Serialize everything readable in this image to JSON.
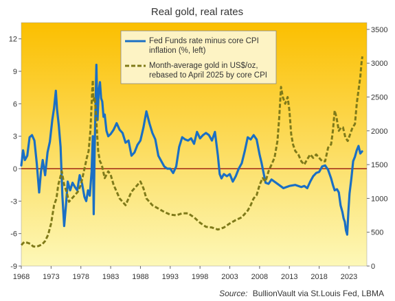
{
  "chart_data": {
    "type": "line",
    "title": "Real gold, real rates",
    "source_label": "Source:",
    "source_text": "BullionVault via St.Louis Fed, LBMA",
    "x_ticks": [
      "1968",
      "1973",
      "1978",
      "1983",
      "1988",
      "1993",
      "1998",
      "2003",
      "2008",
      "2013",
      "2018",
      "2023"
    ],
    "xlim": [
      1968,
      2026
    ],
    "y_left": {
      "ticks": [
        "12",
        "9",
        "6",
        "3",
        "0",
        "-3",
        "-6",
        "-9"
      ],
      "ylim": [
        -9,
        13.5
      ]
    },
    "y_right": {
      "ticks": [
        "3500",
        "3000",
        "2500",
        "2000",
        "1500",
        "1000",
        "500",
        "0"
      ],
      "ylim": [
        0,
        3600
      ]
    },
    "zero_line": true,
    "grid": false,
    "legend_position": "top-center",
    "colors": {
      "rate_line": "#1a6fc4",
      "gold_line": "#7f7a19",
      "zero_line": "#8b0000",
      "bg_top": "#fbbf00",
      "bg_bottom": "#fdf8b8"
    },
    "series": [
      {
        "name": "Fed Funds rate minus core CPI inflation (%, left)",
        "axis": "left",
        "style": "solid",
        "x": [
          1968.0,
          1968.3,
          1968.6,
          1969.0,
          1969.4,
          1969.8,
          1970.2,
          1970.6,
          1971.0,
          1971.3,
          1971.6,
          1972.0,
          1972.4,
          1972.8,
          1973.2,
          1973.5,
          1973.8,
          1974.0,
          1974.3,
          1974.6,
          1974.9,
          1975.2,
          1975.5,
          1975.8,
          1976.2,
          1976.6,
          1977.0,
          1977.4,
          1977.8,
          1978.2,
          1978.6,
          1978.9,
          1979.2,
          1979.5,
          1979.8,
          1980.0,
          1980.15,
          1980.3,
          1980.45,
          1980.6,
          1980.8,
          1981.0,
          1981.2,
          1981.4,
          1981.6,
          1981.8,
          1982.0,
          1982.3,
          1982.6,
          1983.0,
          1983.5,
          1984.0,
          1984.5,
          1985.0,
          1985.5,
          1986.0,
          1986.5,
          1987.0,
          1987.5,
          1988.0,
          1988.5,
          1989.0,
          1989.5,
          1990.0,
          1990.5,
          1991.0,
          1991.5,
          1992.0,
          1992.5,
          1993.0,
          1993.5,
          1994.0,
          1994.5,
          1995.0,
          1995.5,
          1996.0,
          1996.5,
          1997.0,
          1997.5,
          1998.0,
          1998.5,
          1999.0,
          1999.5,
          2000.0,
          2000.5,
          2001.0,
          2001.3,
          2001.6,
          2002.0,
          2002.5,
          2003.0,
          2003.5,
          2004.0,
          2004.5,
          2005.0,
          2005.5,
          2006.0,
          2006.5,
          2007.0,
          2007.5,
          2008.0,
          2008.3,
          2008.6,
          2009.0,
          2009.5,
          2010.0,
          2011.0,
          2012.0,
          2013.0,
          2014.0,
          2015.0,
          2015.5,
          2016.0,
          2016.5,
          2017.0,
          2017.5,
          2018.0,
          2018.5,
          2019.0,
          2019.5,
          2020.0,
          2020.3,
          2020.6,
          2021.0,
          2021.3,
          2021.6,
          2021.9,
          2022.1,
          2022.3,
          2022.5,
          2022.7,
          2022.9,
          2023.1,
          2023.4,
          2023.7,
          2024.0,
          2024.3,
          2024.6,
          2024.9,
          2025.2
        ],
        "y": [
          0.3,
          1.7,
          0.8,
          1.2,
          2.9,
          3.1,
          2.6,
          0.5,
          -2.2,
          -0.3,
          0.8,
          -0.6,
          1.5,
          2.5,
          4.5,
          5.6,
          7.2,
          5.5,
          4.0,
          2.0,
          -2.5,
          -5.3,
          -3.4,
          -1.2,
          -2.0,
          -1.3,
          -1.7,
          -2.0,
          -0.6,
          -1.4,
          -2.6,
          -3.0,
          -2.0,
          -2.5,
          -0.3,
          3.0,
          -4.2,
          1.5,
          5.5,
          9.6,
          4.5,
          7.2,
          8.0,
          6.5,
          6.2,
          4.8,
          5.0,
          3.5,
          3.0,
          3.2,
          3.6,
          4.2,
          3.6,
          3.3,
          2.4,
          2.6,
          1.2,
          1.5,
          2.2,
          2.6,
          3.8,
          5.3,
          4.2,
          3.3,
          2.7,
          1.2,
          0.7,
          0.2,
          0.0,
          0.0,
          -0.4,
          0.2,
          2.0,
          2.9,
          2.7,
          2.6,
          2.8,
          2.3,
          3.4,
          2.8,
          3.1,
          3.3,
          3.1,
          2.6,
          3.4,
          1.2,
          -0.5,
          -0.9,
          -0.5,
          -0.7,
          -0.5,
          -1.2,
          -0.7,
          0.0,
          0.5,
          1.6,
          2.9,
          2.7,
          3.1,
          2.7,
          1.3,
          0.6,
          -0.2,
          -1.3,
          -1.4,
          -1.0,
          -1.4,
          -1.8,
          -1.6,
          -1.5,
          -1.7,
          -1.6,
          -1.8,
          -1.2,
          -0.7,
          -0.4,
          -0.3,
          0.2,
          0.3,
          -0.1,
          -0.9,
          -1.5,
          -2.0,
          -1.9,
          -2.2,
          -3.4,
          -4.0,
          -4.6,
          -4.9,
          -5.7,
          -6.1,
          -4.0,
          -2.3,
          -0.9,
          0.7,
          1.1,
          1.7,
          2.1,
          1.4,
          1.6
        ]
      },
      {
        "name": "Month-average gold in US$/oz, rebased to April 2025 by core CPI",
        "axis": "right",
        "style": "dashed",
        "x": [
          1968.0,
          1968.5,
          1969.0,
          1969.5,
          1970.0,
          1970.5,
          1971.0,
          1971.5,
          1972.0,
          1972.5,
          1973.0,
          1973.5,
          1973.9,
          1974.2,
          1974.5,
          1974.8,
          1975.2,
          1975.6,
          1976.0,
          1976.5,
          1977.0,
          1977.5,
          1978.0,
          1978.5,
          1979.0,
          1979.3,
          1979.6,
          1979.85,
          1980.0,
          1980.1,
          1980.3,
          1980.5,
          1980.7,
          1980.9,
          1981.2,
          1981.5,
          1982.0,
          1982.3,
          1982.6,
          1983.0,
          1983.5,
          1984.0,
          1984.5,
          1985.0,
          1985.5,
          1986.0,
          1986.5,
          1987.0,
          1987.5,
          1988.0,
          1988.5,
          1989.0,
          1989.5,
          1990.0,
          1991.0,
          1992.0,
          1993.0,
          1994.0,
          1995.0,
          1996.0,
          1997.0,
          1998.0,
          1999.0,
          2000.0,
          2001.0,
          2002.0,
          2003.0,
          2004.0,
          2005.0,
          2006.0,
          2006.5,
          2007.0,
          2007.5,
          2008.0,
          2008.5,
          2009.0,
          2009.5,
          2010.0,
          2010.5,
          2011.0,
          2011.3,
          2011.6,
          2011.9,
          2012.3,
          2012.7,
          2013.0,
          2013.3,
          2013.6,
          2014.0,
          2014.5,
          2015.0,
          2015.5,
          2016.0,
          2016.5,
          2017.0,
          2017.5,
          2018.0,
          2018.5,
          2019.0,
          2019.5,
          2020.0,
          2020.3,
          2020.6,
          2020.9,
          2021.3,
          2021.7,
          2022.0,
          2022.4,
          2022.8,
          2023.2,
          2023.6,
          2024.0,
          2024.3,
          2024.6,
          2024.9,
          2025.1,
          2025.25
        ],
        "y": [
          310,
          355,
          345,
          330,
          290,
          285,
          300,
          320,
          370,
          460,
          630,
          900,
          1000,
          1200,
          1300,
          1400,
          1200,
          1100,
          950,
          1000,
          1050,
          1100,
          1200,
          1400,
          1600,
          1700,
          2000,
          2500,
          2750,
          2450,
          2500,
          2300,
          2000,
          1700,
          1550,
          1500,
          1300,
          1350,
          1400,
          1350,
          1200,
          1100,
          1000,
          950,
          900,
          1000,
          1100,
          1150,
          1200,
          1250,
          1150,
          1000,
          950,
          900,
          850,
          800,
          760,
          750,
          780,
          780,
          720,
          640,
          580,
          570,
          540,
          570,
          630,
          680,
          720,
          820,
          900,
          1000,
          1050,
          1200,
          1300,
          1250,
          1400,
          1500,
          1600,
          1850,
          2200,
          2650,
          2500,
          2400,
          2500,
          2300,
          1950,
          1800,
          1700,
          1650,
          1550,
          1500,
          1580,
          1650,
          1600,
          1650,
          1600,
          1550,
          1550,
          1750,
          1800,
          2000,
          2300,
          2200,
          2000,
          2050,
          2050,
          1900,
          1850,
          1950,
          2050,
          2100,
          2400,
          2600,
          2800,
          3000,
          3100
        ]
      }
    ]
  }
}
